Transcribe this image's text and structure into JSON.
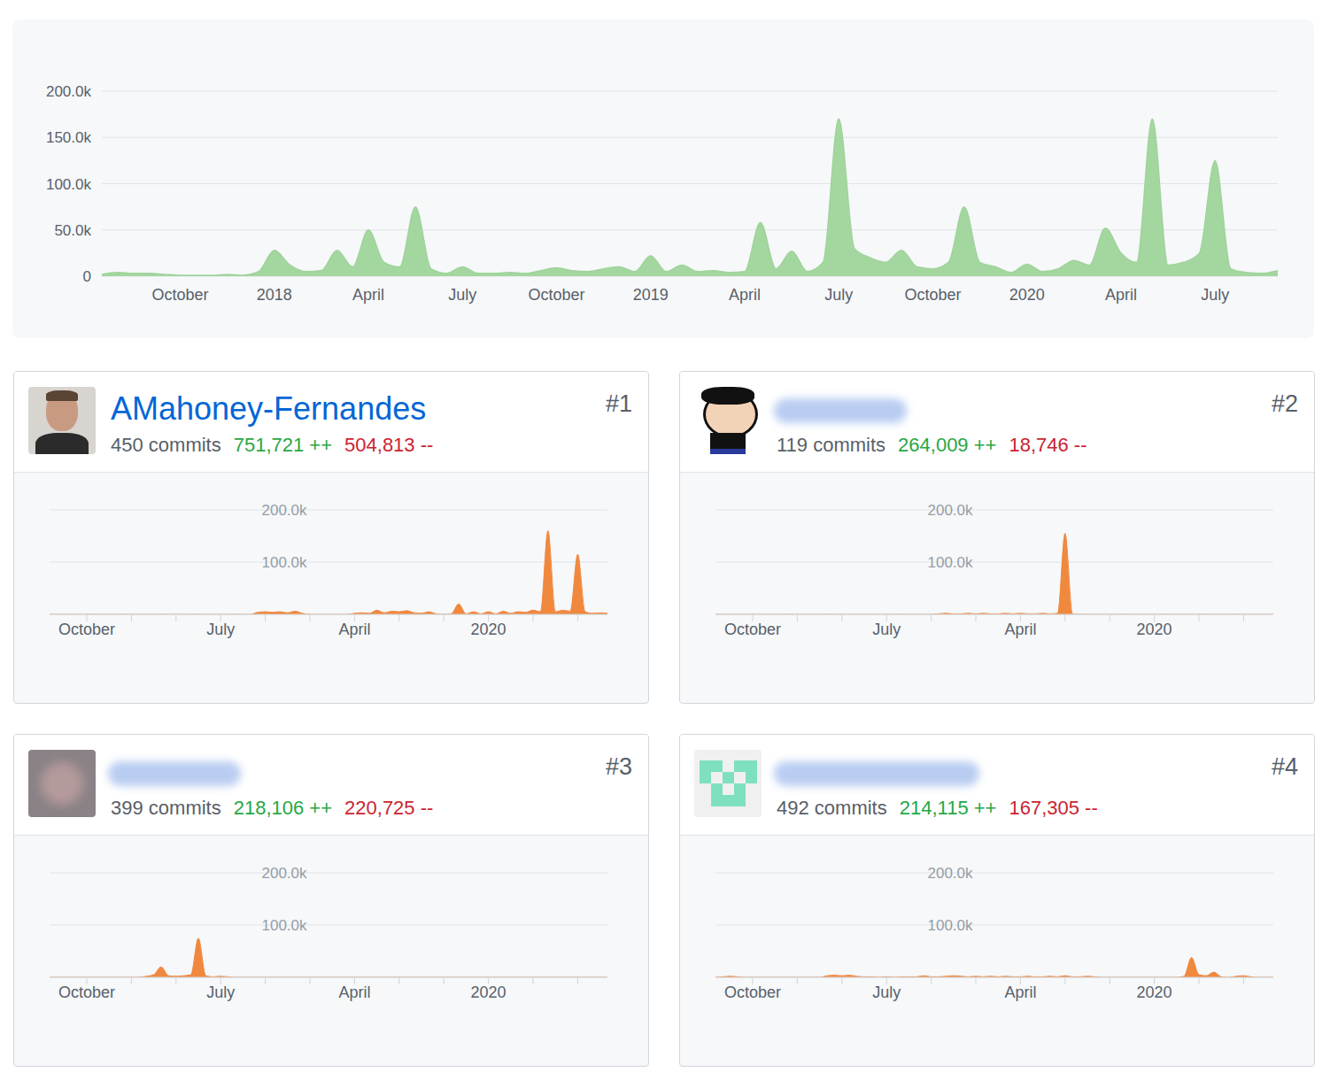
{
  "chart_data": [
    {
      "type": "area",
      "color": "#9fd49a",
      "grid": true,
      "categories": [
        null,
        null,
        null,
        null,
        null,
        "October",
        null,
        null,
        null,
        null,
        null,
        "2018",
        null,
        null,
        null,
        null,
        null,
        "April",
        null,
        null,
        null,
        null,
        null,
        "July",
        null,
        null,
        null,
        null,
        null,
        "October",
        null,
        null,
        null,
        null,
        null,
        "2019",
        null,
        null,
        null,
        null,
        null,
        "April",
        null,
        null,
        null,
        null,
        null,
        "July",
        null,
        null,
        null,
        null,
        null,
        "October",
        null,
        null,
        null,
        null,
        null,
        "2020",
        null,
        null,
        null,
        null,
        null,
        "April",
        null,
        null,
        null,
        null,
        null,
        "July",
        null,
        null,
        null,
        null
      ],
      "values": [
        2000,
        4000,
        3000,
        3000,
        2000,
        1000,
        1000,
        1000,
        2000,
        1000,
        5000,
        28000,
        12000,
        5000,
        6000,
        28000,
        10000,
        50000,
        15000,
        10000,
        75000,
        8000,
        3000,
        10000,
        3000,
        3000,
        4000,
        3000,
        6000,
        9000,
        6000,
        5000,
        8000,
        10000,
        5000,
        22000,
        5000,
        12000,
        5000,
        6000,
        4000,
        5000,
        58000,
        8000,
        27000,
        5000,
        15000,
        170000,
        30000,
        20000,
        15000,
        28000,
        10000,
        8000,
        15000,
        75000,
        15000,
        10000,
        4000,
        13000,
        5000,
        8000,
        17000,
        12000,
        52000,
        25000,
        15000,
        170000,
        12000,
        15000,
        25000,
        125000,
        8000,
        4000,
        3000,
        6000
      ],
      "ylim": [
        0,
        200000
      ],
      "yticks": [
        0,
        {
          "value": 50000,
          "label": "50.0k"
        },
        {
          "value": 100000,
          "label": "100.0k"
        },
        {
          "value": 150000,
          "label": "150.0k"
        },
        {
          "value": 200000,
          "label": "200.0k"
        }
      ]
    },
    {
      "type": "area",
      "color": "#f0883e",
      "grid": true,
      "categories": [
        null,
        null,
        null,
        null,
        null,
        "October",
        null,
        null,
        null,
        null,
        null,
        null,
        null,
        null,
        null,
        null,
        null,
        null,
        null,
        null,
        null,
        null,
        null,
        "July",
        null,
        null,
        null,
        null,
        null,
        null,
        null,
        null,
        null,
        null,
        null,
        null,
        null,
        null,
        null,
        null,
        null,
        "April",
        null,
        null,
        null,
        null,
        null,
        null,
        null,
        null,
        null,
        null,
        null,
        null,
        null,
        null,
        null,
        null,
        null,
        "2020",
        null,
        null,
        null,
        null,
        null,
        null,
        null,
        null,
        null,
        null,
        null,
        null,
        null,
        null,
        null,
        null
      ],
      "values": [
        0,
        0,
        0,
        0,
        0,
        0,
        0,
        0,
        0,
        0,
        0,
        0,
        0,
        0,
        0,
        0,
        0,
        0,
        0,
        0,
        0,
        0,
        0,
        0,
        0,
        0,
        0,
        0,
        4000,
        5000,
        4000,
        5000,
        3000,
        6000,
        2000,
        0,
        0,
        0,
        0,
        0,
        0,
        2000,
        3000,
        2000,
        8000,
        3000,
        6000,
        5000,
        7000,
        3000,
        2000,
        5000,
        1000,
        0,
        1000,
        20000,
        1000,
        5000,
        1000,
        5000,
        1000,
        6000,
        2000,
        5000,
        4000,
        8000,
        5000,
        160000,
        5000,
        8000,
        6000,
        115000,
        5000,
        2000,
        3000,
        2000
      ],
      "ylim": [
        0,
        200000
      ],
      "yticks": [
        {
          "value": 100000,
          "label": "100.0k"
        },
        {
          "value": 200000,
          "label": "200.0k"
        }
      ]
    },
    {
      "type": "area",
      "color": "#f0883e",
      "grid": true,
      "categories": [
        null,
        null,
        null,
        null,
        null,
        "October",
        null,
        null,
        null,
        null,
        null,
        null,
        null,
        null,
        null,
        null,
        null,
        null,
        null,
        null,
        null,
        null,
        null,
        "July",
        null,
        null,
        null,
        null,
        null,
        null,
        null,
        null,
        null,
        null,
        null,
        null,
        null,
        null,
        null,
        null,
        null,
        "April",
        null,
        null,
        null,
        null,
        null,
        null,
        null,
        null,
        null,
        null,
        null,
        null,
        null,
        null,
        null,
        null,
        null,
        "2020",
        null,
        null,
        null,
        null,
        null,
        null,
        null,
        null,
        null,
        null,
        null,
        null,
        null,
        null,
        null,
        null
      ],
      "values": [
        0,
        0,
        0,
        0,
        0,
        0,
        0,
        0,
        0,
        0,
        0,
        0,
        0,
        0,
        0,
        0,
        0,
        0,
        0,
        0,
        0,
        0,
        0,
        0,
        0,
        0,
        0,
        0,
        0,
        0,
        1000,
        2000,
        1000,
        1000,
        2000,
        1000,
        2000,
        1000,
        1000,
        2000,
        1000,
        2000,
        1000,
        1000,
        2000,
        1000,
        2000,
        155000,
        1000,
        0,
        0,
        0,
        0,
        0,
        0,
        0,
        0,
        0,
        0,
        0,
        0,
        0,
        0,
        0,
        0,
        0,
        0,
        0,
        0,
        0,
        0,
        0,
        0,
        0,
        0,
        0
      ],
      "ylim": [
        0,
        200000
      ],
      "yticks": [
        {
          "value": 100000,
          "label": "100.0k"
        },
        {
          "value": 200000,
          "label": "200.0k"
        }
      ]
    },
    {
      "type": "area",
      "color": "#f0883e",
      "grid": true,
      "categories": [
        null,
        null,
        null,
        null,
        null,
        "October",
        null,
        null,
        null,
        null,
        null,
        null,
        null,
        null,
        null,
        null,
        null,
        null,
        null,
        null,
        null,
        null,
        null,
        "July",
        null,
        null,
        null,
        null,
        null,
        null,
        null,
        null,
        null,
        null,
        null,
        null,
        null,
        null,
        null,
        null,
        null,
        "April",
        null,
        null,
        null,
        null,
        null,
        null,
        null,
        null,
        null,
        null,
        null,
        null,
        null,
        null,
        null,
        null,
        null,
        "2020",
        null,
        null,
        null,
        null,
        null,
        null,
        null,
        null,
        null,
        null,
        null,
        null,
        null,
        null,
        null,
        null
      ],
      "values": [
        0,
        0,
        0,
        0,
        0,
        0,
        0,
        0,
        0,
        0,
        0,
        0,
        0,
        2000,
        5000,
        20000,
        3000,
        2000,
        3000,
        5000,
        75000,
        3000,
        1000,
        2000,
        1000,
        0,
        0,
        0,
        0,
        0,
        0,
        0,
        0,
        0,
        0,
        0,
        0,
        0,
        0,
        0,
        0,
        0,
        0,
        0,
        0,
        0,
        0,
        0,
        0,
        0,
        0,
        0,
        0,
        0,
        0,
        0,
        0,
        0,
        0,
        0,
        0,
        0,
        0,
        0,
        0,
        0,
        0,
        0,
        0,
        0,
        0,
        0,
        0,
        0,
        0,
        0
      ],
      "ylim": [
        0,
        200000
      ],
      "yticks": [
        {
          "value": 100000,
          "label": "100.0k"
        },
        {
          "value": 200000,
          "label": "200.0k"
        }
      ]
    },
    {
      "type": "area",
      "color": "#f0883e",
      "grid": true,
      "categories": [
        null,
        null,
        null,
        null,
        null,
        "October",
        null,
        null,
        null,
        null,
        null,
        null,
        null,
        null,
        null,
        null,
        null,
        null,
        null,
        null,
        null,
        null,
        null,
        "July",
        null,
        null,
        null,
        null,
        null,
        null,
        null,
        null,
        null,
        null,
        null,
        null,
        null,
        null,
        null,
        null,
        null,
        "April",
        null,
        null,
        null,
        null,
        null,
        null,
        null,
        null,
        null,
        null,
        null,
        null,
        null,
        null,
        null,
        null,
        null,
        "2020",
        null,
        null,
        null,
        null,
        null,
        null,
        null,
        null,
        null,
        null,
        null,
        null,
        null,
        null,
        null,
        null
      ],
      "values": [
        0,
        1000,
        2000,
        1000,
        0,
        0,
        0,
        0,
        0,
        0,
        0,
        0,
        0,
        0,
        0,
        3000,
        4000,
        3000,
        4000,
        2000,
        1000,
        1000,
        0,
        1000,
        0,
        1000,
        1000,
        1000,
        3000,
        1000,
        1000,
        2000,
        3000,
        2000,
        1000,
        2000,
        1000,
        2000,
        1000,
        2000,
        1000,
        1000,
        2000,
        1000,
        1000,
        2000,
        1000,
        3000,
        1000,
        1000,
        2000,
        1000,
        0,
        0,
        0,
        0,
        0,
        0,
        0,
        0,
        0,
        0,
        0,
        2000,
        38000,
        5000,
        3000,
        10000,
        1000,
        0,
        2000,
        3000,
        1000,
        0,
        0,
        0
      ],
      "ylim": [
        0,
        200000
      ],
      "yticks": [
        {
          "value": 100000,
          "label": "100.0k"
        },
        {
          "value": 200000,
          "label": "200.0k"
        }
      ]
    }
  ],
  "contributors": [
    {
      "rank": "#1",
      "name": "AMahoney-Fernandes",
      "commits": "450 commits",
      "additions": "751,721 ++",
      "deletions": "504,813 --"
    },
    {
      "rank": "#2",
      "commits": "119 commits",
      "additions": "264,009 ++",
      "deletions": "18,746 --"
    },
    {
      "rank": "#3",
      "commits": "399 commits",
      "additions": "218,106 ++",
      "deletions": "220,725 --"
    },
    {
      "rank": "#4",
      "commits": "492 commits",
      "additions": "214,115 ++",
      "deletions": "167,305 --"
    }
  ]
}
